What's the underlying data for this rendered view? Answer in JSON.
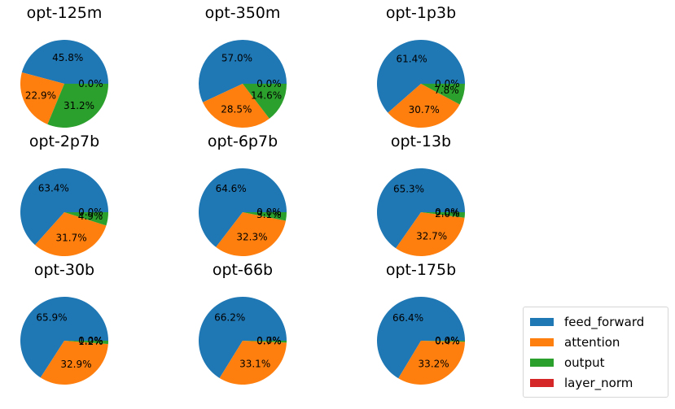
{
  "chart_data": {
    "type": "pie",
    "categories": [
      "feed_forward",
      "attention",
      "output",
      "layer_norm"
    ],
    "colors": [
      "#1f77b4",
      "#ff7f0e",
      "#2ca02c",
      "#d62728"
    ],
    "legend": {
      "position": "lower-right",
      "entries": [
        "feed_forward",
        "attention",
        "output",
        "layer_norm"
      ]
    },
    "charts": [
      {
        "title": "opt-125m",
        "values": [
          45.8,
          22.9,
          31.2,
          0.0
        ],
        "labels": [
          "45.8%",
          "22.9%",
          "31.2%",
          "0.0%"
        ]
      },
      {
        "title": "opt-350m",
        "values": [
          57.0,
          28.5,
          14.6,
          0.0
        ],
        "labels": [
          "57.0%",
          "28.5%",
          "14.6%",
          "0.0%"
        ]
      },
      {
        "title": "opt-1p3b",
        "values": [
          61.4,
          30.7,
          7.8,
          0.0
        ],
        "labels": [
          "61.4%",
          "30.7%",
          "7.8%",
          "0.0%"
        ]
      },
      {
        "title": "opt-2p7b",
        "values": [
          63.4,
          31.7,
          4.9,
          0.0
        ],
        "labels": [
          "63.4%",
          "31.7%",
          "4.9%",
          "0.0%"
        ]
      },
      {
        "title": "opt-6p7b",
        "values": [
          64.6,
          32.3,
          3.1,
          0.0
        ],
        "labels": [
          "64.6%",
          "32.3%",
          "3.1%",
          "0.0%"
        ]
      },
      {
        "title": "opt-13b",
        "values": [
          65.3,
          32.7,
          2.0,
          0.0
        ],
        "labels": [
          "65.3%",
          "32.7%",
          "2.0%",
          "0.0%"
        ]
      },
      {
        "title": "opt-30b",
        "values": [
          65.9,
          32.9,
          1.2,
          0.0
        ],
        "labels": [
          "65.9%",
          "32.9%",
          "1.2%",
          "0.0%"
        ]
      },
      {
        "title": "opt-66b",
        "values": [
          66.2,
          33.1,
          0.7,
          0.0
        ],
        "labels": [
          "66.2%",
          "33.1%",
          "0.7%",
          "0.0%"
        ]
      },
      {
        "title": "opt-175b",
        "values": [
          66.4,
          33.2,
          0.4,
          0.0
        ],
        "labels": [
          "66.4%",
          "33.2%",
          "0.4%",
          "0.0%"
        ]
      }
    ]
  }
}
